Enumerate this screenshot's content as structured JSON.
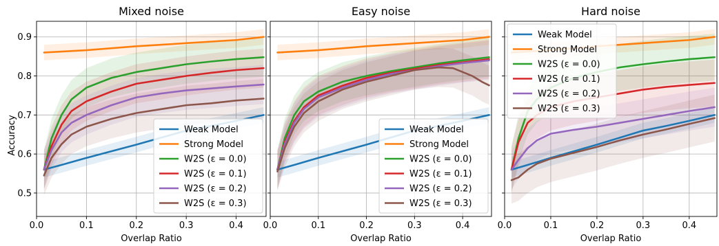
{
  "figure": {
    "ylabel": "Accuracy"
  },
  "chart_data": [
    {
      "type": "line",
      "title": "Mixed noise",
      "xlabel": "Overlap Ratio",
      "ylabel": "Accuracy",
      "xlim": [
        0.0,
        0.46
      ],
      "ylim": [
        0.44,
        0.94
      ],
      "xticks": [
        0.0,
        0.1,
        0.2,
        0.3,
        0.4
      ],
      "yticks": [
        0.5,
        0.6,
        0.7,
        0.8,
        0.9
      ],
      "grid": true,
      "legend": "lower-right",
      "series": [
        {
          "name": "Weak Model",
          "color": "#1f77b4",
          "band": 0.02,
          "points": [
            [
              0.015,
              0.56
            ],
            [
              0.05,
              0.572
            ],
            [
              0.1,
              0.59
            ],
            [
              0.15,
              0.607
            ],
            [
              0.2,
              0.624
            ],
            [
              0.25,
              0.642
            ],
            [
              0.3,
              0.66
            ],
            [
              0.35,
              0.672
            ],
            [
              0.4,
              0.685
            ],
            [
              0.455,
              0.7
            ]
          ]
        },
        {
          "name": "Strong Model",
          "color": "#ff7f0e",
          "band": 0.02,
          "points": [
            [
              0.015,
              0.86
            ],
            [
              0.1,
              0.866
            ],
            [
              0.2,
              0.876
            ],
            [
              0.3,
              0.884
            ],
            [
              0.4,
              0.892
            ],
            [
              0.455,
              0.9
            ]
          ]
        },
        {
          "name": "W2S (ε = 0.0)",
          "color": "#2ca02c",
          "band": 0.05,
          "points": [
            [
              0.015,
              0.56
            ],
            [
              0.03,
              0.64
            ],
            [
              0.05,
              0.7
            ],
            [
              0.07,
              0.74
            ],
            [
              0.1,
              0.77
            ],
            [
              0.15,
              0.795
            ],
            [
              0.2,
              0.81
            ],
            [
              0.25,
              0.82
            ],
            [
              0.3,
              0.83
            ],
            [
              0.35,
              0.837
            ],
            [
              0.4,
              0.843
            ],
            [
              0.455,
              0.848
            ]
          ]
        },
        {
          "name": "W2S (ε = 0.1)",
          "color": "#d62728",
          "band": 0.05,
          "points": [
            [
              0.015,
              0.56
            ],
            [
              0.03,
              0.62
            ],
            [
              0.05,
              0.675
            ],
            [
              0.07,
              0.71
            ],
            [
              0.1,
              0.735
            ],
            [
              0.15,
              0.76
            ],
            [
              0.2,
              0.78
            ],
            [
              0.25,
              0.79
            ],
            [
              0.3,
              0.8
            ],
            [
              0.35,
              0.808
            ],
            [
              0.4,
              0.815
            ],
            [
              0.455,
              0.82
            ]
          ]
        },
        {
          "name": "W2S (ε = 0.2)",
          "color": "#9467bd",
          "band": 0.05,
          "points": [
            [
              0.015,
              0.56
            ],
            [
              0.03,
              0.61
            ],
            [
              0.05,
              0.655
            ],
            [
              0.07,
              0.68
            ],
            [
              0.1,
              0.7
            ],
            [
              0.15,
              0.725
            ],
            [
              0.2,
              0.745
            ],
            [
              0.25,
              0.755
            ],
            [
              0.3,
              0.763
            ],
            [
              0.35,
              0.768
            ],
            [
              0.4,
              0.773
            ],
            [
              0.455,
              0.778
            ]
          ]
        },
        {
          "name": "W2S (ε = 0.3)",
          "color": "#8c564b",
          "band": 0.05,
          "points": [
            [
              0.015,
              0.545
            ],
            [
              0.03,
              0.59
            ],
            [
              0.05,
              0.625
            ],
            [
              0.07,
              0.65
            ],
            [
              0.1,
              0.67
            ],
            [
              0.15,
              0.69
            ],
            [
              0.2,
              0.705
            ],
            [
              0.25,
              0.715
            ],
            [
              0.3,
              0.725
            ],
            [
              0.35,
              0.73
            ],
            [
              0.4,
              0.737
            ],
            [
              0.455,
              0.742
            ]
          ]
        }
      ]
    },
    {
      "type": "line",
      "title": "Easy noise",
      "xlabel": "Overlap Ratio",
      "ylabel": "",
      "xlim": [
        0.0,
        0.46
      ],
      "ylim": [
        0.44,
        0.94
      ],
      "xticks": [
        0.0,
        0.1,
        0.2,
        0.3,
        0.4
      ],
      "yticks": [
        0.5,
        0.6,
        0.7,
        0.8,
        0.9
      ],
      "grid": true,
      "legend": "lower-right",
      "series": [
        {
          "name": "Weak Model",
          "color": "#1f77b4",
          "band": 0.02,
          "points": [
            [
              0.015,
              0.56
            ],
            [
              0.05,
              0.572
            ],
            [
              0.1,
              0.59
            ],
            [
              0.15,
              0.607
            ],
            [
              0.2,
              0.624
            ],
            [
              0.25,
              0.642
            ],
            [
              0.3,
              0.66
            ],
            [
              0.35,
              0.672
            ],
            [
              0.4,
              0.685
            ],
            [
              0.455,
              0.7
            ]
          ]
        },
        {
          "name": "Strong Model",
          "color": "#ff7f0e",
          "band": 0.02,
          "points": [
            [
              0.015,
              0.86
            ],
            [
              0.1,
              0.866
            ],
            [
              0.2,
              0.876
            ],
            [
              0.3,
              0.884
            ],
            [
              0.4,
              0.892
            ],
            [
              0.455,
              0.9
            ]
          ]
        },
        {
          "name": "W2S (ε = 0.0)",
          "color": "#2ca02c",
          "band": 0.05,
          "points": [
            [
              0.015,
              0.56
            ],
            [
              0.03,
              0.64
            ],
            [
              0.05,
              0.7
            ],
            [
              0.07,
              0.735
            ],
            [
              0.1,
              0.76
            ],
            [
              0.15,
              0.785
            ],
            [
              0.2,
              0.8
            ],
            [
              0.25,
              0.812
            ],
            [
              0.3,
              0.822
            ],
            [
              0.35,
              0.832
            ],
            [
              0.4,
              0.84
            ],
            [
              0.455,
              0.848
            ]
          ]
        },
        {
          "name": "W2S (ε = 0.1)",
          "color": "#d62728",
          "band": 0.05,
          "points": [
            [
              0.015,
              0.56
            ],
            [
              0.03,
              0.63
            ],
            [
              0.05,
              0.685
            ],
            [
              0.07,
              0.72
            ],
            [
              0.1,
              0.75
            ],
            [
              0.15,
              0.775
            ],
            [
              0.2,
              0.795
            ],
            [
              0.25,
              0.808
            ],
            [
              0.3,
              0.818
            ],
            [
              0.35,
              0.828
            ],
            [
              0.4,
              0.835
            ],
            [
              0.455,
              0.843
            ]
          ]
        },
        {
          "name": "W2S (ε = 0.2)",
          "color": "#9467bd",
          "band": 0.05,
          "points": [
            [
              0.015,
              0.56
            ],
            [
              0.03,
              0.625
            ],
            [
              0.05,
              0.68
            ],
            [
              0.07,
              0.715
            ],
            [
              0.1,
              0.745
            ],
            [
              0.15,
              0.77
            ],
            [
              0.2,
              0.79
            ],
            [
              0.25,
              0.805
            ],
            [
              0.3,
              0.815
            ],
            [
              0.35,
              0.825
            ],
            [
              0.4,
              0.833
            ],
            [
              0.455,
              0.84
            ]
          ]
        },
        {
          "name": "W2S (ε = 0.3)",
          "color": "#8c564b",
          "band": 0.05,
          "points": [
            [
              0.015,
              0.555
            ],
            [
              0.03,
              0.615
            ],
            [
              0.05,
              0.67
            ],
            [
              0.07,
              0.705
            ],
            [
              0.1,
              0.735
            ],
            [
              0.15,
              0.765
            ],
            [
              0.2,
              0.785
            ],
            [
              0.25,
              0.8
            ],
            [
              0.3,
              0.815
            ],
            [
              0.35,
              0.822
            ],
            [
              0.38,
              0.82
            ],
            [
              0.4,
              0.81
            ],
            [
              0.42,
              0.8
            ],
            [
              0.44,
              0.785
            ],
            [
              0.455,
              0.776
            ]
          ]
        }
      ]
    },
    {
      "type": "line",
      "title": "Hard noise",
      "xlabel": "Overlap Ratio",
      "ylabel": "",
      "xlim": [
        0.0,
        0.46
      ],
      "ylim": [
        0.44,
        0.94
      ],
      "xticks": [
        0.0,
        0.1,
        0.2,
        0.3,
        0.4
      ],
      "yticks": [
        0.5,
        0.6,
        0.7,
        0.8,
        0.9
      ],
      "grid": true,
      "legend": "upper-left",
      "series": [
        {
          "name": "Weak Model",
          "color": "#1f77b4",
          "band": 0.02,
          "points": [
            [
              0.015,
              0.56
            ],
            [
              0.05,
              0.572
            ],
            [
              0.1,
              0.59
            ],
            [
              0.15,
              0.607
            ],
            [
              0.2,
              0.624
            ],
            [
              0.25,
              0.642
            ],
            [
              0.3,
              0.66
            ],
            [
              0.35,
              0.672
            ],
            [
              0.4,
              0.685
            ],
            [
              0.455,
              0.7
            ]
          ]
        },
        {
          "name": "Strong Model",
          "color": "#ff7f0e",
          "band": 0.02,
          "points": [
            [
              0.015,
              0.86
            ],
            [
              0.1,
              0.866
            ],
            [
              0.2,
              0.876
            ],
            [
              0.3,
              0.884
            ],
            [
              0.4,
              0.892
            ],
            [
              0.455,
              0.9
            ]
          ]
        },
        {
          "name": "W2S (ε = 0.0)",
          "color": "#2ca02c",
          "band": 0.06,
          "points": [
            [
              0.015,
              0.56
            ],
            [
              0.03,
              0.64
            ],
            [
              0.05,
              0.71
            ],
            [
              0.07,
              0.74
            ],
            [
              0.1,
              0.77
            ],
            [
              0.15,
              0.795
            ],
            [
              0.2,
              0.81
            ],
            [
              0.25,
              0.822
            ],
            [
              0.3,
              0.83
            ],
            [
              0.35,
              0.837
            ],
            [
              0.4,
              0.843
            ],
            [
              0.455,
              0.848
            ]
          ]
        },
        {
          "name": "W2S (ε = 0.1)",
          "color": "#d62728",
          "band": 0.06,
          "points": [
            [
              0.015,
              0.56
            ],
            [
              0.03,
              0.63
            ],
            [
              0.05,
              0.68
            ],
            [
              0.07,
              0.7
            ],
            [
              0.1,
              0.72
            ],
            [
              0.15,
              0.735
            ],
            [
              0.2,
              0.745
            ],
            [
              0.25,
              0.755
            ],
            [
              0.3,
              0.765
            ],
            [
              0.35,
              0.772
            ],
            [
              0.4,
              0.777
            ],
            [
              0.455,
              0.782
            ]
          ]
        },
        {
          "name": "W2S (ε = 0.2)",
          "color": "#9467bd",
          "band": 0.05,
          "points": [
            [
              0.015,
              0.56
            ],
            [
              0.03,
              0.585
            ],
            [
              0.05,
              0.615
            ],
            [
              0.07,
              0.635
            ],
            [
              0.1,
              0.652
            ],
            [
              0.15,
              0.662
            ],
            [
              0.2,
              0.67
            ],
            [
              0.25,
              0.68
            ],
            [
              0.3,
              0.69
            ],
            [
              0.35,
              0.7
            ],
            [
              0.4,
              0.71
            ],
            [
              0.455,
              0.72
            ]
          ]
        },
        {
          "name": "W2S (ε = 0.3)",
          "color": "#8c564b",
          "band": 0.06,
          "points": [
            [
              0.015,
              0.533
            ],
            [
              0.03,
              0.54
            ],
            [
              0.05,
              0.56
            ],
            [
              0.07,
              0.575
            ],
            [
              0.1,
              0.588
            ],
            [
              0.15,
              0.603
            ],
            [
              0.2,
              0.618
            ],
            [
              0.25,
              0.635
            ],
            [
              0.3,
              0.65
            ],
            [
              0.35,
              0.663
            ],
            [
              0.4,
              0.677
            ],
            [
              0.455,
              0.692
            ]
          ]
        }
      ]
    }
  ]
}
